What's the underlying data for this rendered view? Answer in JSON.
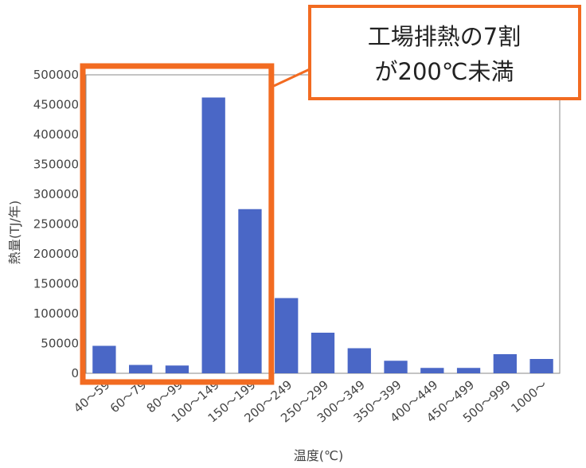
{
  "chart_data": {
    "type": "bar",
    "xlabel": "温度(℃)",
    "ylabel": "熱量(TJ/年)",
    "ylim": [
      0,
      500000
    ],
    "ytick_step": 50000,
    "yticks": [
      "500000",
      "450000",
      "400000",
      "350000",
      "300000",
      "250000",
      "200000",
      "150000",
      "100000",
      "50000",
      "0"
    ],
    "categories": [
      "40～59",
      "60～79",
      "80～99",
      "100～149",
      "150～199",
      "200～249",
      "250～299",
      "300～349",
      "350～399",
      "400～449",
      "450～499",
      "500～999",
      "1000～"
    ],
    "values": [
      46000,
      14000,
      13000,
      462000,
      275000,
      126000,
      68000,
      42000,
      21000,
      9000,
      9000,
      32000,
      24000
    ],
    "bar_color": "#4a67c6",
    "grid": false
  },
  "annotation": {
    "line1": "工場排熱の7割",
    "line2": "が200℃未満",
    "highlight_categories": [
      "40～59",
      "60～79",
      "80～99",
      "100～149",
      "150～199"
    ],
    "highlight_color": "#f26b21"
  }
}
